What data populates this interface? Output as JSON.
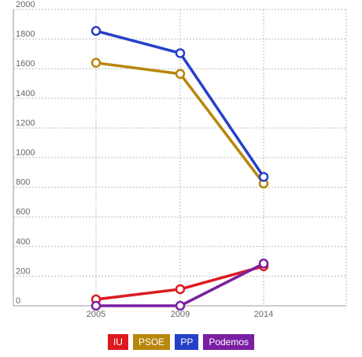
{
  "chart_data": {
    "type": "line",
    "x": [
      "2005",
      "2009",
      "2014"
    ],
    "ylim": [
      0,
      2000
    ],
    "yticks": [
      0,
      200,
      400,
      600,
      800,
      1000,
      1200,
      1400,
      1600,
      1800,
      2000
    ],
    "grid": true,
    "legend_position": "bottom-center",
    "series": [
      {
        "name": "IU",
        "color": "#dd1a1f",
        "values": [
          43,
          112,
          267
        ]
      },
      {
        "name": "PSOE",
        "color": "#b8860b",
        "values": [
          1640,
          1565,
          825
        ]
      },
      {
        "name": "PP",
        "color": "#2540c8",
        "values": [
          1855,
          1705,
          870
        ]
      },
      {
        "name": "Podemos",
        "color": "#7a1fa2",
        "values": [
          0,
          0,
          285
        ]
      }
    ]
  }
}
